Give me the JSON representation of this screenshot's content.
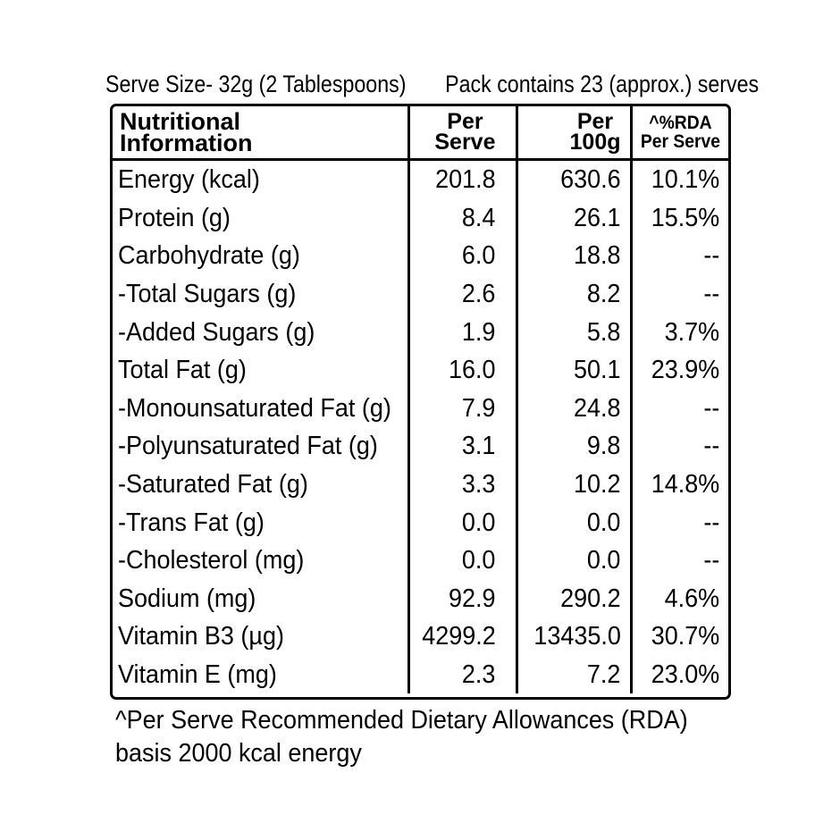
{
  "header": {
    "serve_size": "Serve Size- 32g (2 Tablespoons)",
    "pack_contains": "Pack contains 23 (approx.) serves"
  },
  "table": {
    "columns": [
      {
        "line1": "Nutritional",
        "line2": "Information"
      },
      {
        "line1": "Per",
        "line2": "Serve"
      },
      {
        "line1": "Per",
        "line2": "100g"
      },
      {
        "line1": "^%RDA",
        "line2": "Per Serve"
      }
    ],
    "rows": [
      {
        "nutrient": "Energy (kcal)",
        "per_serve": "201.8",
        "per_100g": "630.6",
        "rda": "10.1%"
      },
      {
        "nutrient": "Protein (g)",
        "per_serve": "8.4",
        "per_100g": "26.1",
        "rda": "15.5%"
      },
      {
        "nutrient": "Carbohydrate (g)",
        "per_serve": "6.0",
        "per_100g": "18.8",
        "rda": "--"
      },
      {
        "nutrient": "-Total Sugars (g)",
        "per_serve": "2.6",
        "per_100g": "8.2",
        "rda": "--"
      },
      {
        "nutrient": "-Added Sugars (g)",
        "per_serve": "1.9",
        "per_100g": "5.8",
        "rda": "3.7%"
      },
      {
        "nutrient": "Total Fat (g)",
        "per_serve": "16.0",
        "per_100g": "50.1",
        "rda": "23.9%"
      },
      {
        "nutrient": "-Monounsaturated Fat (g)",
        "per_serve": "7.9",
        "per_100g": "24.8",
        "rda": "--"
      },
      {
        "nutrient": "-Polyunsaturated Fat (g)",
        "per_serve": "3.1",
        "per_100g": "9.8",
        "rda": "--"
      },
      {
        "nutrient": "-Saturated Fat (g)",
        "per_serve": "3.3",
        "per_100g": "10.2",
        "rda": "14.8%"
      },
      {
        "nutrient": "-Trans Fat (g)",
        "per_serve": "0.0",
        "per_100g": "0.0",
        "rda": "--"
      },
      {
        "nutrient": "-Cholesterol (mg)",
        "per_serve": "0.0",
        "per_100g": "0.0",
        "rda": "--"
      },
      {
        "nutrient": "Sodium (mg)",
        "per_serve": "92.9",
        "per_100g": "290.2",
        "rda": "4.6%"
      },
      {
        "nutrient": "Vitamin B3 (µg)",
        "per_serve": "4299.2",
        "per_100g": "13435.0",
        "rda": "30.7%"
      },
      {
        "nutrient": "Vitamin E (mg)",
        "per_serve": "2.3",
        "per_100g": "7.2",
        "rda": "23.0%"
      }
    ]
  },
  "footnote": {
    "line1": "^Per Serve Recommended Dietary Allowances (RDA)",
    "line2": "basis 2000 kcal energy"
  },
  "colors": {
    "text": "#000000",
    "background": "#ffffff",
    "rules": "#000000"
  }
}
